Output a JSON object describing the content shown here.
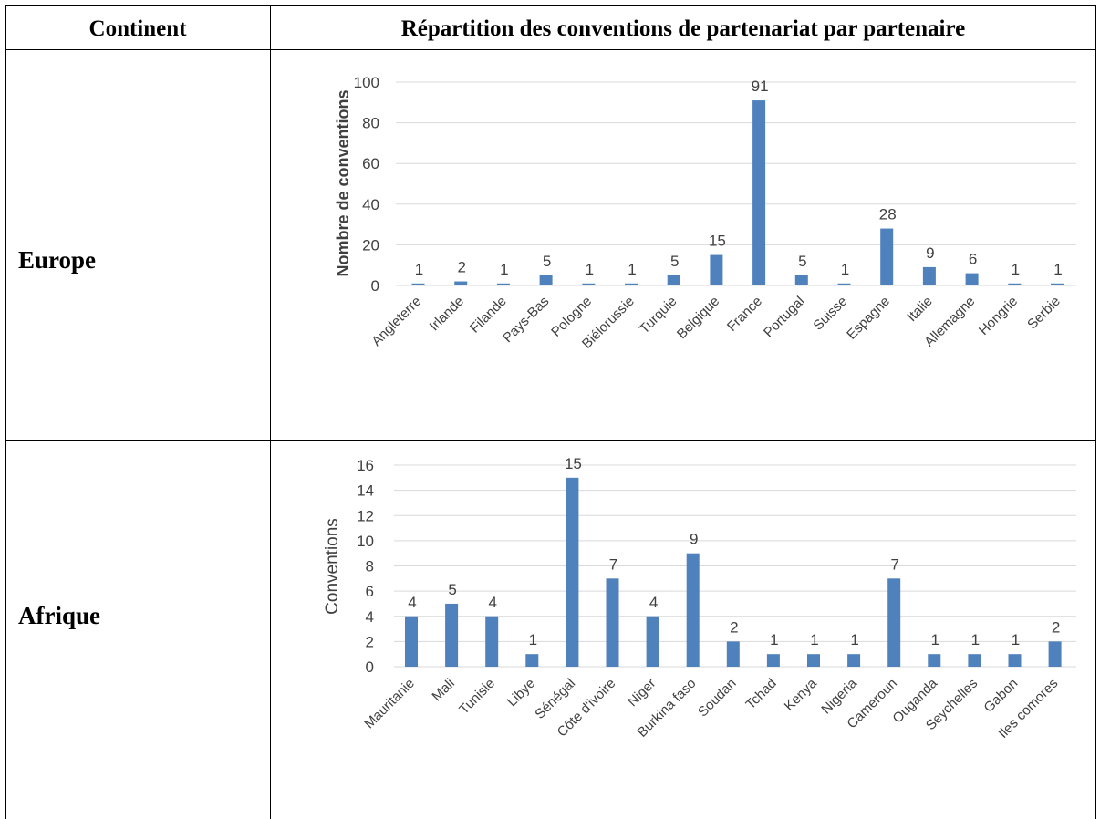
{
  "table": {
    "header_continent": "Continent",
    "header_chart": "Répartition des conventions de partenariat par partenaire",
    "rows": [
      {
        "continent": "Europe"
      },
      {
        "continent": "Afrique"
      }
    ]
  },
  "chart_data": [
    {
      "type": "bar",
      "title": "",
      "xlabel": "",
      "ylabel": "Nombre de conventions",
      "ylim": [
        0,
        100
      ],
      "yticks": [
        0,
        20,
        40,
        60,
        80,
        100
      ],
      "grid": true,
      "legend": "none",
      "colors": {
        "bar": "#4f81bd",
        "grid": "#d9d9d9",
        "text": "#404040"
      },
      "categories": [
        "Angleterre",
        "Irlande",
        "Filande",
        "Pays-Bas",
        "Pologne",
        "Biélorussie",
        "Turquie",
        "Belgique",
        "France",
        "Portugal",
        "Suisse",
        "Espagne",
        "Italie",
        "Allemagne",
        "Hongrie",
        "Serbie"
      ],
      "values": [
        1,
        2,
        1,
        5,
        1,
        1,
        5,
        15,
        91,
        5,
        1,
        28,
        9,
        6,
        1,
        1
      ]
    },
    {
      "type": "bar",
      "title": "",
      "xlabel": "",
      "ylabel": "Conventions",
      "ylim": [
        0,
        16
      ],
      "yticks": [
        0,
        2,
        4,
        6,
        8,
        10,
        12,
        14,
        16
      ],
      "grid": true,
      "legend": "none",
      "colors": {
        "bar": "#4f81bd",
        "grid": "#d9d9d9",
        "text": "#404040"
      },
      "categories": [
        "Mauritanie",
        "Mali",
        "Tunisie",
        "Libye",
        "Sénégal",
        "Côte d'ivoire",
        "Niger",
        "Burkina faso",
        "Soudan",
        "Tchad",
        "Kenya",
        "Nigeria",
        "Cameroun",
        "Ouganda",
        "Seychelles",
        "Gabon",
        "Iles comores"
      ],
      "values": [
        4,
        5,
        4,
        1,
        15,
        7,
        4,
        9,
        2,
        1,
        1,
        1,
        7,
        1,
        1,
        1,
        2
      ]
    }
  ]
}
